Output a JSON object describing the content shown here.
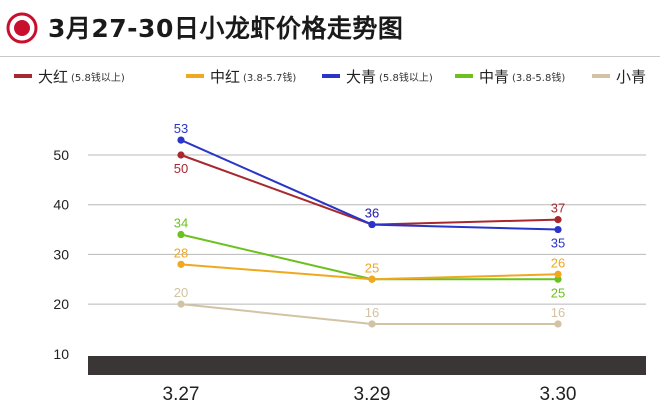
{
  "title": "3月27-30日小龙虾价格走势图",
  "chart_data": {
    "type": "line",
    "categories": [
      "3.27",
      "3.29",
      "3.30"
    ],
    "ylim": [
      10,
      55
    ],
    "yticks": [
      10,
      20,
      30,
      40,
      50
    ],
    "grid": true,
    "legend_position": "top",
    "series": [
      {
        "name": "大红",
        "range": "(5.8钱以上)",
        "color": "#a8282f",
        "values": [
          50,
          36,
          37
        ]
      },
      {
        "name": "中红",
        "range": "(3.8-5.7钱)",
        "color": "#f0a81e",
        "values": [
          28,
          25,
          26
        ]
      },
      {
        "name": "大青",
        "range": "(5.8钱以上)",
        "color": "#2935c9",
        "values": [
          53,
          36,
          35
        ]
      },
      {
        "name": "中青",
        "range": "(3.8-5.8钱)",
        "color": "#6cc11f",
        "values": [
          34,
          25,
          25
        ]
      },
      {
        "name": "小青",
        "range": "",
        "color": "#d2c3a4",
        "values": [
          20,
          16,
          16
        ]
      }
    ]
  }
}
